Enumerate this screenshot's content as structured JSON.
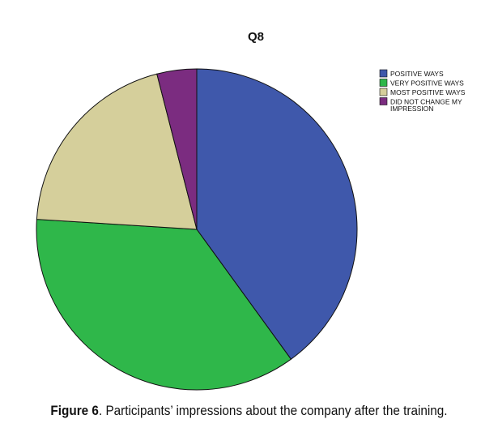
{
  "chart_data": {
    "type": "pie",
    "title": "Q8",
    "slices": [
      {
        "label": "POSITIVE WAYS",
        "value": 40,
        "color": "#3f58ab"
      },
      {
        "label": "VERY POSITIVE WAYS",
        "value": 36,
        "color": "#2fb74a"
      },
      {
        "label": "MOST POSITIVE WAYS",
        "value": 20,
        "color": "#d5cf9b"
      },
      {
        "label": "DID NOT CHANGE MY IMPRESSION",
        "value": 4,
        "color": "#7b2c80"
      }
    ],
    "legend_position": "top-right",
    "start_angle_deg": 0,
    "direction": "clockwise"
  },
  "caption": {
    "label": "Figure 6",
    "text": ". Participants’ impressions about the company after the training."
  }
}
